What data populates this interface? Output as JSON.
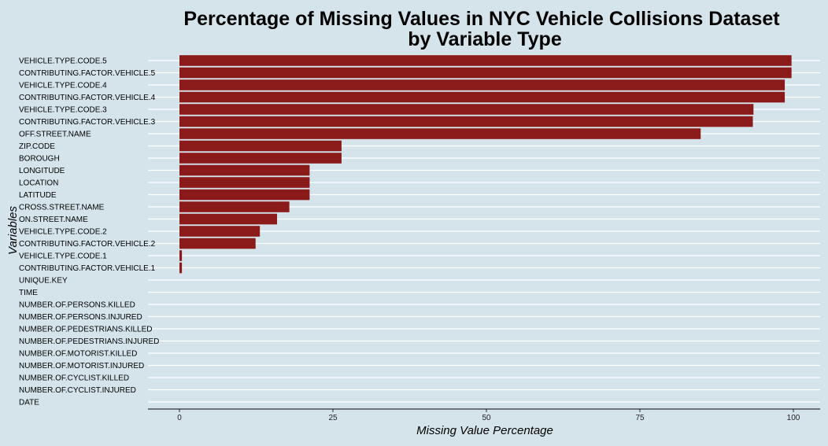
{
  "chart_data": {
    "type": "bar",
    "orientation": "horizontal",
    "title": "Percentage of Missing Values in NYC Vehicle Collisions Dataset",
    "subtitle": "by Variable Type",
    "xlabel": "Missing Value Percentage",
    "ylabel": "Variables",
    "xlim": [
      0,
      100
    ],
    "xticks": [
      0,
      25,
      50,
      75,
      100
    ],
    "grid": "horizontal",
    "legend": "none",
    "colors": {
      "bar": "#8b1a1a",
      "background": "#d5e4eb",
      "grid": "#ffffff"
    },
    "categories": [
      "VEHICLE.TYPE.CODE.5",
      "CONTRIBUTING.FACTOR.VEHICLE.5",
      "VEHICLE.TYPE.CODE.4",
      "CONTRIBUTING.FACTOR.VEHICLE.4",
      "VEHICLE.TYPE.CODE.3",
      "CONTRIBUTING.FACTOR.VEHICLE.3",
      "OFF.STREET.NAME",
      "ZIP.CODE",
      "BOROUGH",
      "LONGITUDE",
      "LOCATION",
      "LATITUDE",
      "CROSS.STREET.NAME",
      "ON.STREET.NAME",
      "VEHICLE.TYPE.CODE.2",
      "CONTRIBUTING.FACTOR.VEHICLE.2",
      "VEHICLE.TYPE.CODE.1",
      "CONTRIBUTING.FACTOR.VEHICLE.1",
      "UNIQUE.KEY",
      "TIME",
      "NUMBER.OF.PERSONS.KILLED",
      "NUMBER.OF.PERSONS.INJURED",
      "NUMBER.OF.PEDESTRIANS.KILLED",
      "NUMBER.OF.PEDESTRIANS.INJURED",
      "NUMBER.OF.MOTORIST.KILLED",
      "NUMBER.OF.MOTORIST.INJURED",
      "NUMBER.OF.CYCLIST.KILLED",
      "NUMBER.OF.CYCLIST.INJURED",
      "DATE"
    ],
    "values": [
      99.7,
      99.7,
      98.6,
      98.6,
      93.5,
      93.4,
      84.9,
      26.4,
      26.4,
      21.2,
      21.2,
      21.2,
      17.9,
      15.9,
      13.1,
      12.4,
      0.4,
      0.4,
      0,
      0,
      0,
      0,
      0,
      0,
      0,
      0,
      0,
      0,
      0
    ]
  }
}
